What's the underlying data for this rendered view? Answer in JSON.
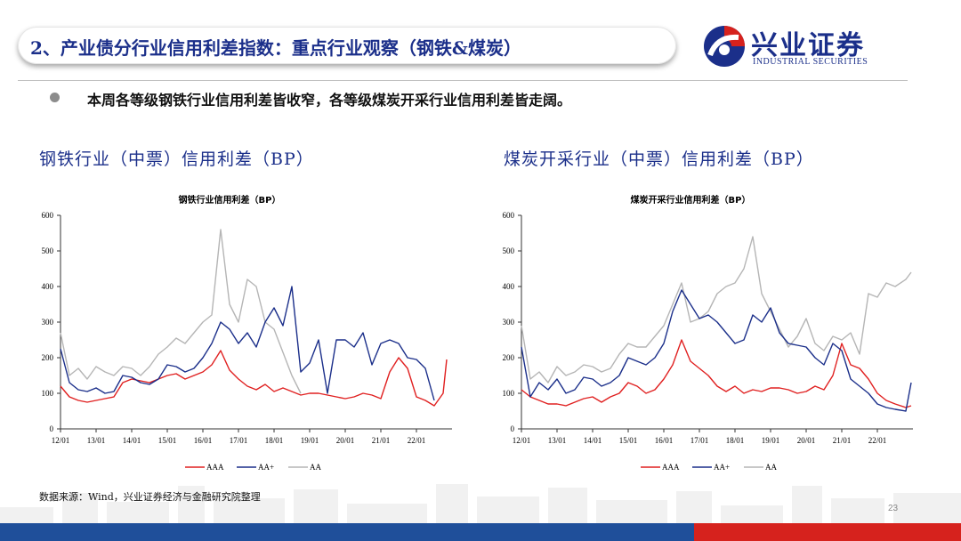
{
  "header": {
    "title": "2、产业债分行业信用利差指数：重点行业观察（钢铁&煤炭）",
    "logo_name": "兴业证券",
    "logo_en": "INDUSTRIAL SECURITIES"
  },
  "bullet": "本周各等级钢铁行业信用利差皆收窄，各等级煤炭开采行业信用利差皆走阔。",
  "sections": {
    "left_title": "钢铁行业（中票）信用利差（BP）",
    "right_title": "煤炭开采行业（中票）信用利差（BP）"
  },
  "footer": {
    "source": "数据来源：Wind，兴业证券经济与金融研究院整理",
    "page": "23"
  },
  "colors": {
    "AAA": "#e02020",
    "AA+": "#1b2f8a",
    "AA": "#b5b5b5",
    "brand": "#1b2f8a"
  },
  "chart_data": [
    {
      "type": "line",
      "title": "钢铁行业信用利差（BP）",
      "x_ticks": [
        "12/01",
        "13/01",
        "14/01",
        "15/01",
        "16/01",
        "17/01",
        "18/01",
        "19/01",
        "20/01",
        "21/01",
        "22/01"
      ],
      "y_ticks": [
        0,
        100,
        200,
        300,
        400,
        500,
        600
      ],
      "ylim": [
        0,
        600
      ],
      "legend": "bottom",
      "series": [
        {
          "name": "AAA",
          "x": [
            2012.0,
            2012.25,
            2012.5,
            2012.75,
            2013.0,
            2013.25,
            2013.5,
            2013.75,
            2014.0,
            2014.25,
            2014.5,
            2014.75,
            2015.0,
            2015.25,
            2015.5,
            2015.75,
            2016.0,
            2016.25,
            2016.5,
            2016.75,
            2017.0,
            2017.25,
            2017.5,
            2017.75,
            2018.0,
            2018.25,
            2018.5,
            2018.75,
            2019.0,
            2019.25,
            2019.5,
            2019.75,
            2020.0,
            2020.25,
            2020.5,
            2020.75,
            2021.0,
            2021.25,
            2021.5,
            2021.75,
            2022.0,
            2022.25,
            2022.5,
            2022.75,
            2022.85
          ],
          "values": [
            120,
            90,
            80,
            75,
            80,
            85,
            90,
            130,
            140,
            135,
            130,
            140,
            150,
            155,
            140,
            150,
            160,
            180,
            220,
            165,
            140,
            120,
            110,
            125,
            105,
            115,
            105,
            95,
            100,
            100,
            95,
            90,
            85,
            90,
            100,
            95,
            85,
            160,
            200,
            170,
            90,
            80,
            65,
            100,
            195
          ]
        },
        {
          "name": "AA+",
          "x": [
            2012.0,
            2012.25,
            2012.5,
            2012.75,
            2013.0,
            2013.25,
            2013.5,
            2013.75,
            2014.0,
            2014.25,
            2014.5,
            2014.75,
            2015.0,
            2015.25,
            2015.5,
            2015.75,
            2016.0,
            2016.25,
            2016.5,
            2016.75,
            2017.0,
            2017.25,
            2017.5,
            2017.75,
            2018.0,
            2018.25,
            2018.5,
            2018.75,
            2019.0,
            2019.25,
            2019.5,
            2019.75,
            2020.0,
            2020.25,
            2020.5,
            2020.75,
            2021.0,
            2021.25,
            2021.5,
            2021.75,
            2022.0,
            2022.25,
            2022.5
          ],
          "values": [
            225,
            130,
            110,
            105,
            115,
            100,
            105,
            150,
            145,
            130,
            125,
            140,
            180,
            175,
            160,
            170,
            200,
            240,
            300,
            280,
            240,
            270,
            230,
            300,
            340,
            290,
            400,
            160,
            185,
            250,
            100,
            250,
            250,
            230,
            270,
            180,
            240,
            250,
            240,
            200,
            195,
            170,
            80
          ]
        },
        {
          "name": "AA",
          "x": [
            2012.0,
            2012.25,
            2012.5,
            2012.75,
            2013.0,
            2013.25,
            2013.5,
            2013.75,
            2014.0,
            2014.25,
            2014.5,
            2014.75,
            2015.0,
            2015.25,
            2015.5,
            2015.75,
            2016.0,
            2016.25,
            2016.5,
            2016.75,
            2017.0,
            2017.25,
            2017.5,
            2017.75,
            2018.0,
            2018.25,
            2018.5,
            2018.75
          ],
          "values": [
            270,
            150,
            170,
            140,
            175,
            160,
            150,
            175,
            170,
            150,
            175,
            210,
            230,
            255,
            240,
            270,
            300,
            320,
            560,
            350,
            300,
            420,
            400,
            300,
            280,
            215,
            150,
            100
          ]
        }
      ]
    },
    {
      "type": "line",
      "title": "煤炭开采行业信用利差（BP）",
      "x_ticks": [
        "12/01",
        "13/01",
        "14/01",
        "15/01",
        "16/01",
        "17/01",
        "18/01",
        "19/01",
        "20/01",
        "21/01",
        "22/01"
      ],
      "y_ticks": [
        0,
        100,
        200,
        300,
        400,
        500,
        600
      ],
      "ylim": [
        0,
        600
      ],
      "legend": "bottom",
      "series": [
        {
          "name": "AAA",
          "x": [
            2012.0,
            2012.25,
            2012.5,
            2012.75,
            2013.0,
            2013.25,
            2013.5,
            2013.75,
            2014.0,
            2014.25,
            2014.5,
            2014.75,
            2015.0,
            2015.25,
            2015.5,
            2015.75,
            2016.0,
            2016.25,
            2016.5,
            2016.75,
            2017.0,
            2017.25,
            2017.5,
            2017.75,
            2018.0,
            2018.25,
            2018.5,
            2018.75,
            2019.0,
            2019.25,
            2019.5,
            2019.75,
            2020.0,
            2020.25,
            2020.5,
            2020.75,
            2021.0,
            2021.25,
            2021.5,
            2021.75,
            2022.0,
            2022.25,
            2022.5,
            2022.8,
            2022.95
          ],
          "values": [
            110,
            90,
            80,
            70,
            70,
            65,
            75,
            85,
            90,
            75,
            90,
            100,
            130,
            120,
            100,
            110,
            140,
            180,
            250,
            190,
            170,
            150,
            120,
            105,
            120,
            100,
            110,
            105,
            115,
            115,
            110,
            100,
            105,
            120,
            110,
            150,
            240,
            180,
            170,
            140,
            100,
            80,
            70,
            60,
            65
          ]
        },
        {
          "name": "AA+",
          "x": [
            2012.0,
            2012.25,
            2012.5,
            2012.75,
            2013.0,
            2013.25,
            2013.5,
            2013.75,
            2014.0,
            2014.25,
            2014.5,
            2014.75,
            2015.0,
            2015.25,
            2015.5,
            2015.75,
            2016.0,
            2016.25,
            2016.5,
            2016.75,
            2017.0,
            2017.25,
            2017.5,
            2017.75,
            2018.0,
            2018.25,
            2018.5,
            2018.75,
            2019.0,
            2019.25,
            2019.5,
            2019.75,
            2020.0,
            2020.25,
            2020.5,
            2020.75,
            2021.0,
            2021.25,
            2021.5,
            2021.75,
            2022.0,
            2022.25,
            2022.5,
            2022.8,
            2022.95
          ],
          "values": [
            230,
            90,
            130,
            110,
            140,
            100,
            110,
            145,
            140,
            120,
            130,
            150,
            200,
            190,
            180,
            200,
            240,
            330,
            390,
            350,
            310,
            320,
            300,
            270,
            240,
            250,
            320,
            300,
            340,
            270,
            240,
            235,
            230,
            200,
            180,
            240,
            220,
            140,
            120,
            100,
            70,
            60,
            55,
            50,
            130
          ]
        },
        {
          "name": "AA",
          "x": [
            2012.0,
            2012.25,
            2012.5,
            2012.75,
            2013.0,
            2013.25,
            2013.5,
            2013.75,
            2014.0,
            2014.25,
            2014.5,
            2014.75,
            2015.0,
            2015.25,
            2015.5,
            2015.75,
            2016.0,
            2016.25,
            2016.5,
            2016.75,
            2017.0,
            2017.25,
            2017.5,
            2017.75,
            2018.0,
            2018.25,
            2018.5,
            2018.75,
            2019.0,
            2019.25,
            2019.5,
            2019.75,
            2020.0,
            2020.25,
            2020.5,
            2020.75,
            2021.0,
            2021.25,
            2021.5,
            2021.75,
            2022.0,
            2022.25,
            2022.5,
            2022.8,
            2022.95
          ],
          "values": [
            290,
            140,
            160,
            130,
            175,
            150,
            160,
            180,
            175,
            160,
            170,
            210,
            240,
            230,
            230,
            260,
            290,
            350,
            410,
            300,
            310,
            330,
            380,
            400,
            410,
            450,
            540,
            380,
            330,
            280,
            230,
            260,
            310,
            240,
            220,
            260,
            250,
            270,
            210,
            380,
            370,
            410,
            400,
            420,
            440
          ]
        }
      ]
    }
  ]
}
